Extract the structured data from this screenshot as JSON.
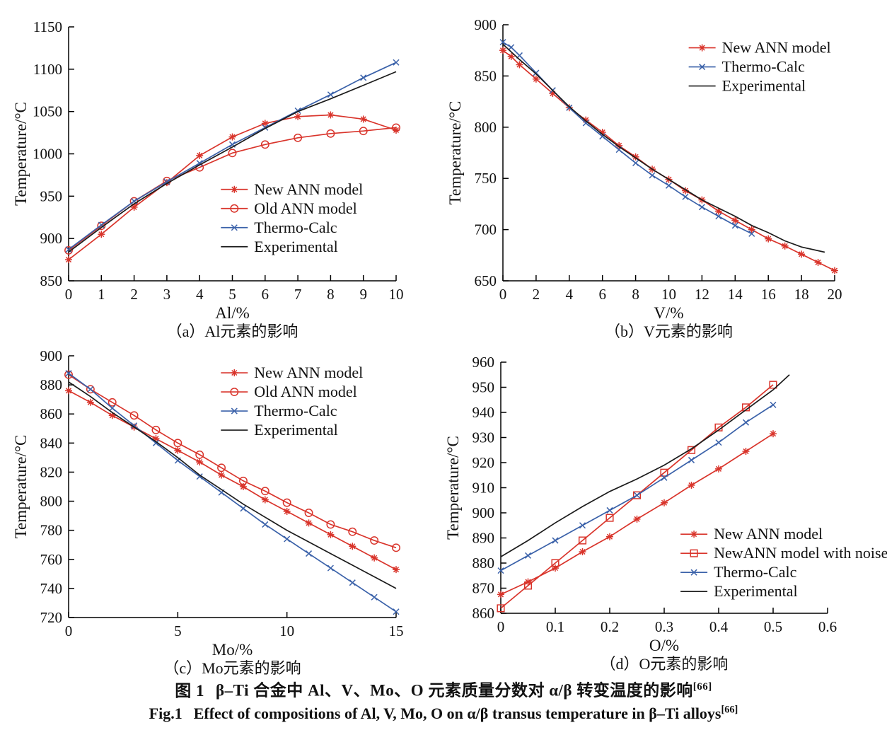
{
  "figure_caption": {
    "zh_label": "图 1",
    "zh_text": "β–Ti 合金中 Al、V、Mo、O 元素质量分数对 α/β 转变温度的影响",
    "zh_ref": "[66]",
    "en_label": "Fig.1",
    "en_text": "Effect of compositions of Al, V, Mo, O on α/β transus temperature in β–Ti alloys",
    "en_ref": "[66]"
  },
  "colors": {
    "red": "#d9342b",
    "blue": "#3a61a9",
    "black": "#1b1b1b",
    "axis": "#000000"
  },
  "chart_data": [
    {
      "id": "a",
      "type": "line",
      "caption": "（a）Al元素的影响",
      "xlabel": "Al/%",
      "ylabel": "Temperature/°C",
      "xlim": [
        0,
        10
      ],
      "ylim": [
        850,
        1150
      ],
      "xticks": [
        0,
        1,
        2,
        3,
        4,
        5,
        6,
        7,
        8,
        9,
        10
      ],
      "yticks": [
        850,
        900,
        950,
        1000,
        1050,
        1100,
        1150
      ],
      "grid": false,
      "legend": {
        "x": 0.465,
        "y": 0.64
      },
      "plot": {
        "l": 97,
        "r": 560,
        "t": 38,
        "b": 397
      },
      "series": [
        {
          "name": "New ANN model",
          "color": "#d9342b",
          "marker": "star",
          "x": [
            0,
            1,
            2,
            3,
            4,
            5,
            6,
            7,
            8,
            9,
            10
          ],
          "y": [
            875,
            905,
            937,
            966,
            998,
            1020,
            1036,
            1044,
            1046,
            1041,
            1028
          ]
        },
        {
          "name": "Old ANN model",
          "color": "#d9342b",
          "marker": "circle",
          "x": [
            0,
            1,
            2,
            3,
            4,
            5,
            6,
            7,
            8,
            9,
            10
          ],
          "y": [
            886,
            915,
            944,
            968,
            984,
            1001,
            1011,
            1019,
            1024,
            1027,
            1031
          ]
        },
        {
          "name": "Thermo-Calc",
          "color": "#3a61a9",
          "marker": "x",
          "x": [
            0,
            1,
            2,
            3,
            4,
            5,
            6,
            7,
            8,
            9,
            10
          ],
          "y": [
            887,
            916,
            944,
            967,
            989,
            1011,
            1031,
            1051,
            1070,
            1090,
            1108
          ]
        },
        {
          "name": "Experimental",
          "color": "#1b1b1b",
          "marker": "none",
          "x": [
            0,
            1,
            2,
            3,
            4,
            5,
            6,
            7,
            8,
            9,
            10
          ],
          "y": [
            884,
            913,
            941,
            965,
            987,
            1008,
            1030,
            1050,
            1065,
            1081,
            1097
          ]
        }
      ]
    },
    {
      "id": "b",
      "type": "line",
      "caption": "（b）V元素的影响",
      "xlabel": "V/%",
      "ylabel": "Temperature/°C",
      "xlim": [
        0,
        20
      ],
      "ylim": [
        650,
        900
      ],
      "xticks": [
        0,
        2,
        4,
        6,
        8,
        10,
        12,
        14,
        16,
        18,
        20
      ],
      "yticks": [
        650,
        700,
        750,
        800,
        850,
        900
      ],
      "grid": false,
      "legend": {
        "x": 0.56,
        "y": 0.09
      },
      "plot": {
        "l": 84,
        "r": 553,
        "t": 35,
        "b": 397
      },
      "series": [
        {
          "name": "New ANN model",
          "color": "#d9342b",
          "marker": "star",
          "x": [
            0,
            0.5,
            1,
            2,
            3,
            4,
            5,
            6,
            7,
            8,
            9,
            10,
            11,
            12,
            13,
            14,
            15,
            16,
            17,
            18,
            19,
            20
          ],
          "y": [
            875,
            869,
            861,
            847,
            833,
            819,
            807,
            795,
            782,
            771,
            759,
            749,
            738,
            729,
            718,
            709,
            700,
            691,
            684,
            676,
            668,
            660
          ]
        },
        {
          "name": "Thermo-Calc",
          "color": "#3a61a9",
          "marker": "x",
          "x": [
            0,
            0.5,
            1,
            2,
            3,
            4,
            5,
            6,
            7,
            8,
            9,
            10,
            11,
            12,
            13,
            14,
            15
          ],
          "y": [
            883,
            878,
            870,
            853,
            836,
            819,
            804,
            791,
            778,
            765,
            753,
            743,
            732,
            722,
            713,
            704,
            696
          ]
        },
        {
          "name": "Experimental",
          "color": "#1b1b1b",
          "marker": "none",
          "x": [
            0,
            1,
            2,
            3,
            4,
            5,
            6,
            7,
            8,
            9,
            10,
            11,
            12,
            13,
            14,
            15,
            16,
            17,
            18,
            19.4
          ],
          "y": [
            881,
            866,
            852,
            836,
            820,
            806,
            793,
            781,
            770,
            759,
            749,
            739,
            729,
            721,
            713,
            704,
            697,
            689,
            683,
            678
          ]
        }
      ]
    },
    {
      "id": "c",
      "type": "line",
      "caption": "（c）Mo元素的影响",
      "xlabel": "Mo/%",
      "ylabel": "Temperature/°C",
      "xlim": [
        0,
        15
      ],
      "ylim": [
        720,
        900
      ],
      "xticks": [
        0,
        5,
        10,
        15
      ],
      "yticks": [
        720,
        740,
        760,
        780,
        800,
        820,
        840,
        860,
        880,
        900
      ],
      "grid": false,
      "legend": {
        "x": 0.465,
        "y": 0.065
      },
      "plot": {
        "l": 97,
        "r": 560,
        "t": 23,
        "b": 393
      },
      "series": [
        {
          "name": "New ANN model",
          "color": "#d9342b",
          "marker": "star",
          "x": [
            0,
            1,
            2,
            3,
            4,
            5,
            6,
            7,
            8,
            9,
            10,
            11,
            12,
            13,
            14,
            15
          ],
          "y": [
            876,
            868,
            859,
            851,
            843,
            835,
            827,
            818,
            810,
            801,
            793,
            785,
            777,
            769,
            761,
            753
          ]
        },
        {
          "name": "Old ANN model",
          "color": "#d9342b",
          "marker": "circle",
          "x": [
            0,
            1,
            2,
            3,
            4,
            5,
            6,
            7,
            8,
            9,
            10,
            11,
            12,
            13,
            14,
            15
          ],
          "y": [
            887,
            877,
            868,
            859,
            849,
            840,
            832,
            823,
            814,
            807,
            799,
            792,
            784,
            779,
            773,
            768
          ]
        },
        {
          "name": "Thermo-Calc",
          "color": "#3a61a9",
          "marker": "x",
          "x": [
            0,
            1,
            2,
            3,
            4,
            5,
            6,
            7,
            8,
            9,
            10,
            11,
            12,
            13,
            14,
            15
          ],
          "y": [
            888,
            877,
            864,
            852,
            840,
            828,
            817,
            806,
            795,
            784,
            774,
            764,
            754,
            744,
            734,
            724
          ]
        },
        {
          "name": "Experimental",
          "color": "#1b1b1b",
          "marker": "none",
          "x": [
            0,
            1,
            2,
            3,
            4,
            5,
            6,
            7,
            8,
            9,
            10,
            11,
            12,
            13,
            14,
            15
          ],
          "y": [
            882,
            872,
            861,
            851,
            841,
            830,
            818,
            808,
            798,
            789,
            780,
            772,
            764,
            756,
            748,
            740
          ]
        }
      ]
    },
    {
      "id": "d",
      "type": "line",
      "caption": "（d）O元素的影响",
      "xlabel": "O/%",
      "ylabel": "Temperature/°C",
      "xlim": [
        0,
        0.6
      ],
      "ylim": [
        860,
        960
      ],
      "xticks": [
        0,
        0.1,
        0.2,
        0.3,
        0.4,
        0.5,
        0.6
      ],
      "yticks": [
        860,
        870,
        880,
        890,
        900,
        910,
        920,
        930,
        940,
        950,
        960
      ],
      "grid": false,
      "legend": {
        "x": 0.55,
        "y": 0.685
      },
      "plot": {
        "l": 81,
        "r": 543,
        "t": 32,
        "b": 387
      },
      "series": [
        {
          "name": "New ANN model",
          "color": "#d9342b",
          "marker": "star",
          "x": [
            0,
            0.05,
            0.1,
            0.15,
            0.2,
            0.25,
            0.3,
            0.35,
            0.4,
            0.45,
            0.5
          ],
          "y": [
            867.5,
            872.5,
            878,
            884.5,
            890.5,
            897.5,
            904,
            911,
            917.5,
            924.5,
            931.5
          ]
        },
        {
          "name": "NewANN model with noise",
          "color": "#d9342b",
          "marker": "square",
          "x": [
            0,
            0.05,
            0.1,
            0.15,
            0.2,
            0.25,
            0.3,
            0.35,
            0.4,
            0.45,
            0.5
          ],
          "y": [
            862,
            871,
            880,
            889,
            898,
            907,
            916,
            925,
            934,
            942,
            951
          ]
        },
        {
          "name": "Thermo-Calc",
          "color": "#3a61a9",
          "marker": "x",
          "x": [
            0,
            0.05,
            0.1,
            0.15,
            0.2,
            0.25,
            0.3,
            0.35,
            0.4,
            0.45,
            0.5
          ],
          "y": [
            877,
            883,
            889,
            895,
            901,
            907,
            914,
            921,
            928,
            936,
            943
          ]
        },
        {
          "name": "Experimental",
          "color": "#1b1b1b",
          "marker": "none",
          "x": [
            0,
            0.05,
            0.1,
            0.15,
            0.2,
            0.25,
            0.3,
            0.35,
            0.4,
            0.45,
            0.5,
            0.53
          ],
          "y": [
            882.5,
            889,
            896,
            902.5,
            908.5,
            913.5,
            919,
            925.5,
            933,
            941,
            949,
            955
          ]
        }
      ]
    }
  ]
}
